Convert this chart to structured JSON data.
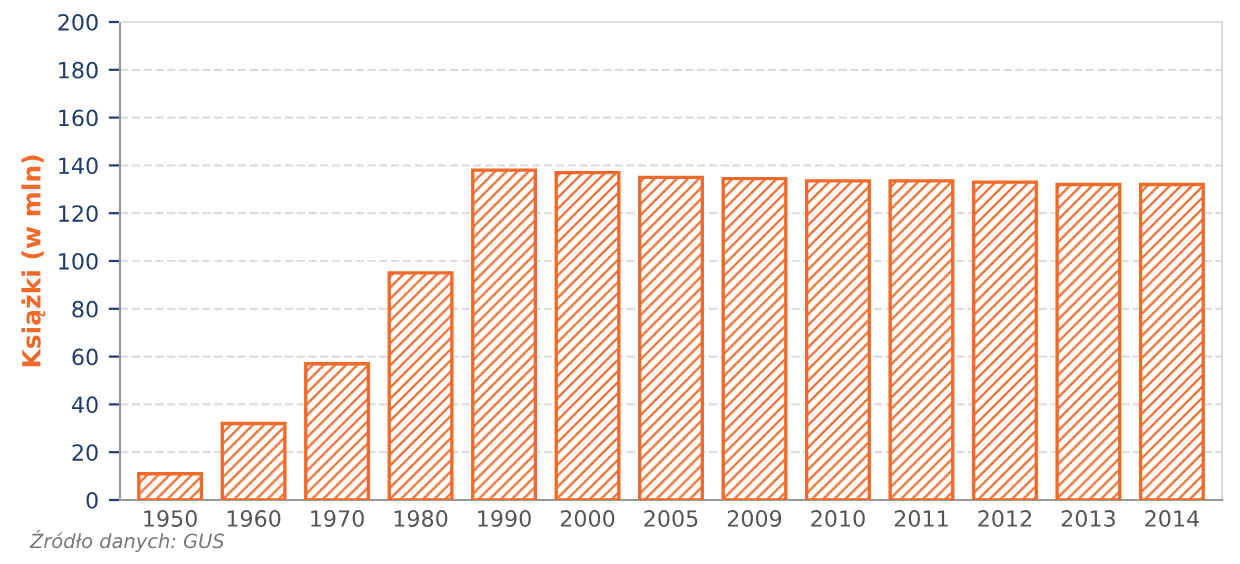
{
  "chart_data": {
    "type": "bar",
    "ylabel": "Książki (w mln)",
    "categories": [
      "1950",
      "1960",
      "1970",
      "1980",
      "1990",
      "2000",
      "2005",
      "2009",
      "2010",
      "2011",
      "2012",
      "2013",
      "2014"
    ],
    "values": [
      11,
      32,
      57,
      95,
      138,
      137,
      135,
      134.5,
      133.5,
      133.5,
      133,
      132,
      132
    ],
    "color": "#f26a2a",
    "ylim": [
      0,
      200
    ],
    "yticks": [
      0,
      20,
      40,
      60,
      80,
      100,
      120,
      140,
      160,
      180,
      200
    ],
    "grid": "y",
    "annotations": [
      "Źródło danych: GUS"
    ]
  }
}
